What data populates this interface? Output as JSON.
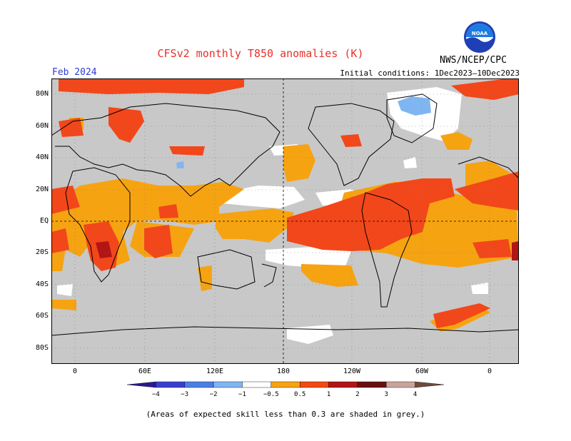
{
  "title": "CFSv2 monthly T850 anomalies (K)",
  "month": "Feb 2024",
  "initial_conditions": "Initial conditions: 1Dec2023–10Dec2023",
  "org": "NWS/NCEP/CPC",
  "logo_text": "NOAA",
  "lat_labels": [
    "80N",
    "60N",
    "40N",
    "20N",
    "EQ",
    "20S",
    "40S",
    "60S",
    "80S"
  ],
  "lon_labels": [
    "0",
    "60E",
    "120E",
    "180",
    "120W",
    "60W",
    "0"
  ],
  "colorbar": {
    "ticks": [
      "−4",
      "−3",
      "−2",
      "−1",
      "−0.5",
      "0.5",
      "1",
      "2",
      "3",
      "4"
    ],
    "colors": [
      "#2a1a8f",
      "#3b3fd0",
      "#4a7fe6",
      "#7fb6f2",
      "#ffffff",
      "#f6a312",
      "#f24a12",
      "#b11515",
      "#6a0f0f",
      "#c9a49a",
      "#6f4a3f"
    ]
  },
  "footnote": "(Areas of expected skill less than 0.3 are shaded in grey.)",
  "colors": {
    "grey": "#c8c8c8",
    "orange": "#f6a312",
    "red_orange": "#f2471a",
    "dark_red": "#b11515",
    "light_blue": "#7fb6f2",
    "title_red": "#e8312a",
    "month_blue": "#2b3bd6"
  }
}
